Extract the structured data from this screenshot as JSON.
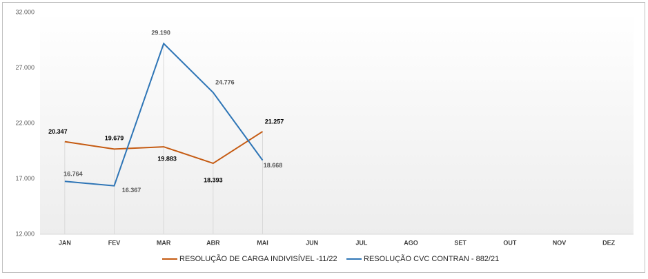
{
  "chart_data": {
    "type": "line",
    "categories": [
      "JAN",
      "FEV",
      "MAR",
      "ABR",
      "MAI",
      "JUN",
      "JUL",
      "AGO",
      "SET",
      "OUT",
      "NOV",
      "DEZ"
    ],
    "series": [
      {
        "name": "RESOLUÇÃO DE CARGA INDIVISÍVEL -11/22",
        "color": "#c55a11",
        "values": [
          20347,
          19679,
          19883,
          18393,
          21257,
          null,
          null,
          null,
          null,
          null,
          null,
          null
        ],
        "value_labels": [
          "20.347",
          "19.679",
          "19.883",
          "18.393",
          "21.257",
          null,
          null,
          null,
          null,
          null,
          null,
          null
        ]
      },
      {
        "name": "RESOLUÇÃO CVC CONTRAN - 882/21",
        "color": "#2e75b6",
        "values": [
          16764,
          16367,
          29190,
          24776,
          18668,
          null,
          null,
          null,
          null,
          null,
          null,
          null
        ],
        "value_labels": [
          "16.764",
          "16.367",
          "29.190",
          "24.776",
          "18.668",
          null,
          null,
          null,
          null,
          null,
          null,
          null
        ]
      }
    ],
    "ylim": [
      12000,
      32000
    ],
    "yticks": [
      {
        "value": 12000,
        "label": "12.000"
      },
      {
        "value": 17000,
        "label": "17.000"
      },
      {
        "value": 22000,
        "label": "22.000"
      },
      {
        "value": 27000,
        "label": "27.000"
      },
      {
        "value": 32000,
        "label": "32.000"
      }
    ]
  }
}
